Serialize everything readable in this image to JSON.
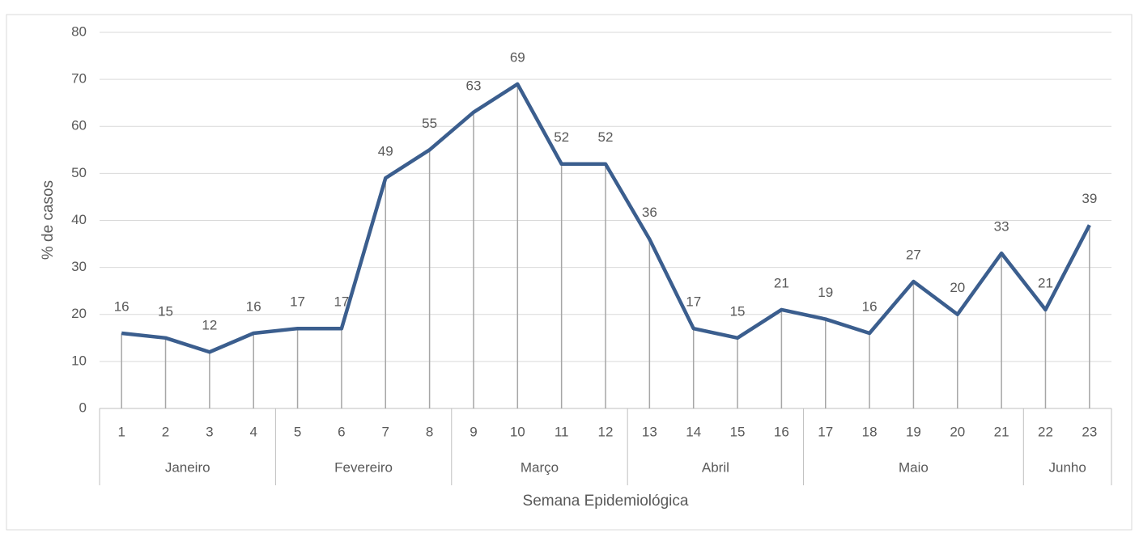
{
  "chart_data": {
    "type": "line",
    "y_label": "% de casos",
    "x_label": "Semana Epidemiológica",
    "categories": [
      "1",
      "2",
      "3",
      "4",
      "5",
      "6",
      "7",
      "8",
      "9",
      "10",
      "11",
      "12",
      "13",
      "14",
      "15",
      "16",
      "17",
      "18",
      "19",
      "20",
      "21",
      "22",
      "23"
    ],
    "groups": [
      {
        "label": "Janeiro",
        "count": 4
      },
      {
        "label": "Fevereiro",
        "count": 4
      },
      {
        "label": "Março",
        "count": 4
      },
      {
        "label": "Abril",
        "count": 4
      },
      {
        "label": "Maio",
        "count": 5
      },
      {
        "label": "Junho",
        "count": 2
      }
    ],
    "values": [
      16,
      15,
      12,
      16,
      17,
      17,
      49,
      55,
      63,
      69,
      52,
      52,
      36,
      17,
      15,
      21,
      19,
      16,
      27,
      20,
      33,
      21,
      39
    ],
    "color": "#3b5e8e",
    "drop_lines": true,
    "data_labels": true,
    "ylim": [
      0,
      80
    ],
    "yticks": [
      0,
      10,
      20,
      30,
      40,
      50,
      60,
      70,
      80
    ],
    "grid": true
  }
}
